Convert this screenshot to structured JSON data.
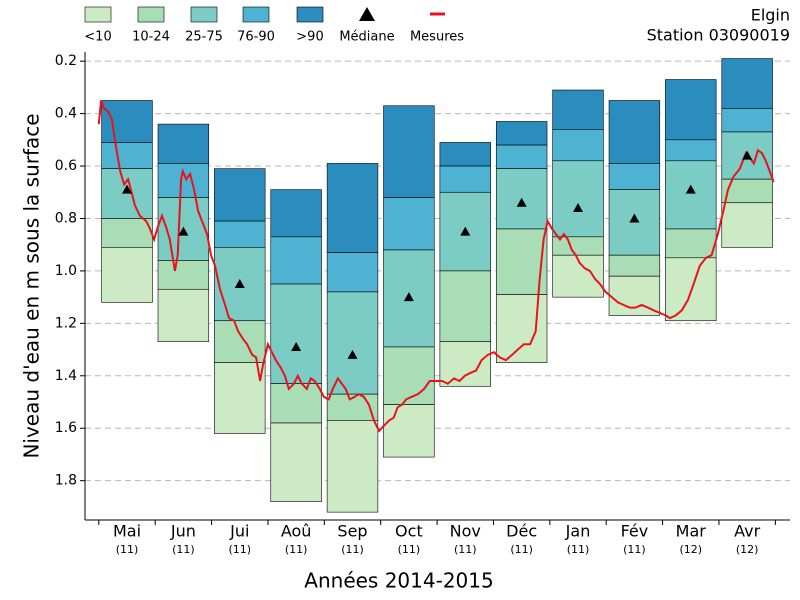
{
  "chart_data": {
    "type": "percentile_bars",
    "title": "Elgin",
    "subtitle": "Station 03090019",
    "y_label": "Niveau d'eau en m sous la surface",
    "x_label": "Années 2014-2015",
    "categories": [
      "Mai",
      "Jun",
      "Jui",
      "Aoû",
      "Sep",
      "Oct",
      "Nov",
      "Déc",
      "Jan",
      "Fév",
      "Mar",
      "Avr"
    ],
    "counts": [
      "(11)",
      "(11)",
      "(11)",
      "(11)",
      "(11)",
      "(11)",
      "(11)",
      "(11)",
      "(11)",
      "(11)",
      "(12)",
      "(12)"
    ],
    "levels": [
      [
        0.35,
        0.44,
        0.61,
        0.69,
        0.59,
        0.37,
        0.51,
        0.43,
        0.31,
        0.35,
        0.27,
        0.19
      ],
      [
        0.51,
        0.59,
        0.81,
        0.87,
        0.93,
        0.72,
        0.6,
        0.52,
        0.46,
        0.59,
        0.5,
        0.38
      ],
      [
        0.61,
        0.72,
        0.91,
        1.05,
        1.08,
        0.92,
        0.7,
        0.61,
        0.58,
        0.69,
        0.58,
        0.47
      ],
      [
        0.8,
        0.96,
        1.19,
        1.43,
        1.47,
        1.29,
        1.0,
        0.84,
        0.87,
        0.94,
        0.84,
        0.65
      ],
      [
        0.91,
        1.07,
        1.35,
        1.58,
        1.57,
        1.51,
        1.27,
        1.09,
        0.94,
        1.02,
        0.95,
        0.74
      ],
      [
        1.12,
        1.27,
        1.62,
        1.88,
        1.92,
        1.71,
        1.44,
        1.35,
        1.1,
        1.17,
        1.19,
        0.91
      ]
    ],
    "bands": [
      {
        "name": ">90",
        "color": "#2b8cbe"
      },
      {
        "name": "76-90",
        "color": "#4eb3d3"
      },
      {
        "name": "25-75",
        "color": "#7bccc4"
      },
      {
        "name": "10-24",
        "color": "#a8ddb5"
      },
      {
        "name": "<10",
        "color": "#ccebc5"
      }
    ],
    "median": {
      "name": "Médiane",
      "color": "#000000",
      "values": [
        0.69,
        0.85,
        1.05,
        1.29,
        1.32,
        1.1,
        0.85,
        0.74,
        0.76,
        0.8,
        0.69,
        0.56
      ]
    },
    "measures": {
      "name": "Mesures",
      "color": "#e8141c",
      "x": [
        -0.5,
        -0.46,
        -0.41,
        -0.34,
        -0.27,
        -0.2,
        -0.12,
        -0.05,
        0.02,
        0.07,
        0.14,
        0.23,
        0.34,
        0.41,
        0.48,
        0.55,
        0.62,
        0.69,
        0.76,
        0.85,
        0.9,
        0.96,
        0.99,
        1.05,
        1.12,
        1.19,
        1.26,
        1.33,
        1.42,
        1.49,
        1.56,
        1.65,
        1.74,
        1.81,
        1.9,
        1.97,
        2.06,
        2.13,
        2.22,
        2.29,
        2.36,
        2.41,
        2.5,
        2.57,
        2.64,
        2.73,
        2.8,
        2.87,
        2.96,
        3.03,
        3.1,
        3.19,
        3.26,
        3.33,
        3.42,
        3.49,
        3.58,
        3.65,
        3.74,
        3.81,
        3.88,
        3.95,
        4.04,
        4.11,
        4.2,
        4.29,
        4.38,
        4.47,
        4.56,
        4.65,
        4.73,
        4.8,
        4.88,
        4.95,
        5.05,
        5.16,
        5.27,
        5.37,
        5.48,
        5.59,
        5.69,
        5.8,
        5.9,
        5.99,
        6.08,
        6.19,
        6.29,
        6.4,
        6.51,
        6.61,
        6.72,
        6.83,
        6.93,
        7.04,
        7.15,
        7.25,
        7.32,
        7.39,
        7.46,
        7.54,
        7.61,
        7.68,
        7.75,
        7.82,
        7.89,
        7.96,
        8.03,
        8.12,
        8.21,
        8.3,
        8.39,
        8.49,
        8.6,
        8.71,
        8.81,
        8.92,
        9.02,
        9.13,
        9.24,
        9.34,
        9.45,
        9.56,
        9.63,
        9.73,
        9.84,
        9.95,
        10.05,
        10.16,
        10.27,
        10.37,
        10.48,
        10.59,
        10.66,
        10.76,
        10.87,
        10.98,
        11.05,
        11.12,
        11.19,
        11.26,
        11.33,
        11.4,
        11.47
      ],
      "y": [
        0.44,
        0.35,
        0.38,
        0.39,
        0.42,
        0.52,
        0.62,
        0.67,
        0.65,
        0.69,
        0.75,
        0.79,
        0.81,
        0.84,
        0.88,
        0.83,
        0.79,
        0.83,
        0.88,
        1.0,
        0.94,
        0.65,
        0.62,
        0.65,
        0.63,
        0.69,
        0.77,
        0.81,
        0.86,
        0.94,
        0.98,
        1.07,
        1.13,
        1.18,
        1.19,
        1.23,
        1.26,
        1.28,
        1.32,
        1.33,
        1.42,
        1.36,
        1.28,
        1.31,
        1.34,
        1.37,
        1.4,
        1.45,
        1.43,
        1.4,
        1.43,
        1.45,
        1.41,
        1.42,
        1.45,
        1.48,
        1.49,
        1.45,
        1.41,
        1.43,
        1.45,
        1.49,
        1.48,
        1.47,
        1.48,
        1.51,
        1.57,
        1.61,
        1.59,
        1.57,
        1.56,
        1.52,
        1.51,
        1.49,
        1.48,
        1.47,
        1.45,
        1.42,
        1.42,
        1.42,
        1.43,
        1.41,
        1.42,
        1.4,
        1.39,
        1.38,
        1.34,
        1.32,
        1.31,
        1.33,
        1.34,
        1.32,
        1.3,
        1.28,
        1.28,
        1.23,
        1.03,
        0.88,
        0.81,
        0.84,
        0.86,
        0.88,
        0.86,
        0.88,
        0.92,
        0.94,
        0.97,
        0.99,
        1.0,
        1.03,
        1.05,
        1.08,
        1.1,
        1.12,
        1.13,
        1.14,
        1.14,
        1.13,
        1.14,
        1.15,
        1.16,
        1.17,
        1.18,
        1.17,
        1.15,
        1.11,
        1.05,
        0.98,
        0.95,
        0.94,
        0.86,
        0.76,
        0.69,
        0.64,
        0.61,
        0.55,
        0.57,
        0.59,
        0.54,
        0.55,
        0.58,
        0.62,
        0.66
      ]
    },
    "xlim": [
      -0.745,
      11.76
    ],
    "ylim": [
      0.165,
      1.95
    ],
    "inverted": true,
    "yticks": [
      0.2,
      0.4,
      0.6,
      0.8,
      {
        "value": 1,
        "label": "1.0"
      },
      1.2,
      1.4,
      1.6,
      1.8
    ],
    "grid": true
  }
}
